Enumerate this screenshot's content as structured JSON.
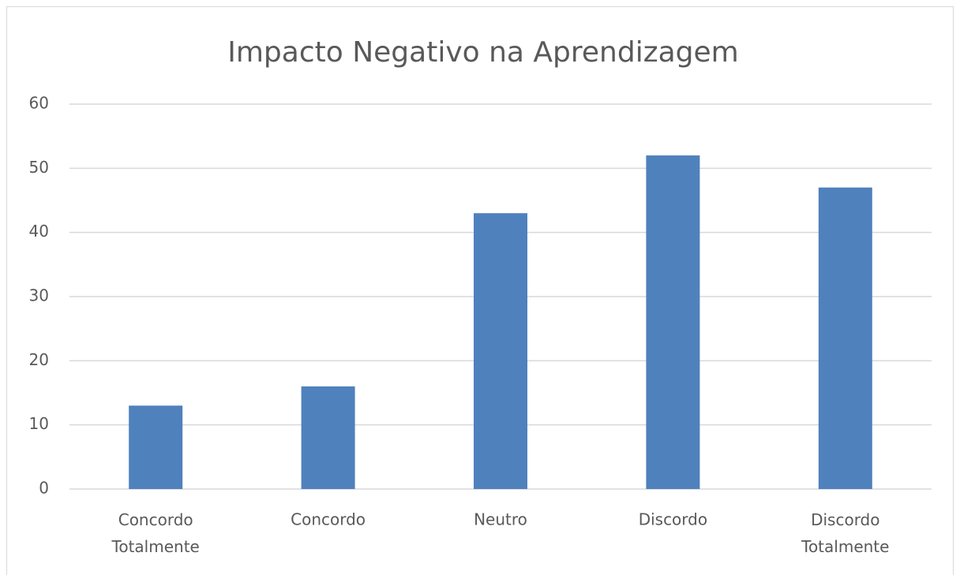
{
  "chart_data": {
    "type": "bar",
    "title": "Impacto Negativo na Aprendizagem",
    "categories": [
      "Concordo\nTotalmente",
      "Concordo",
      "Neutro",
      "Discordo",
      "Discordo\nTotalmente"
    ],
    "values": [
      13,
      16,
      43,
      52,
      47
    ],
    "color": "#4f81bd",
    "ylim": [
      0,
      60
    ],
    "yticks": [
      0,
      10,
      20,
      30,
      40,
      50,
      60
    ],
    "grid": true
  }
}
